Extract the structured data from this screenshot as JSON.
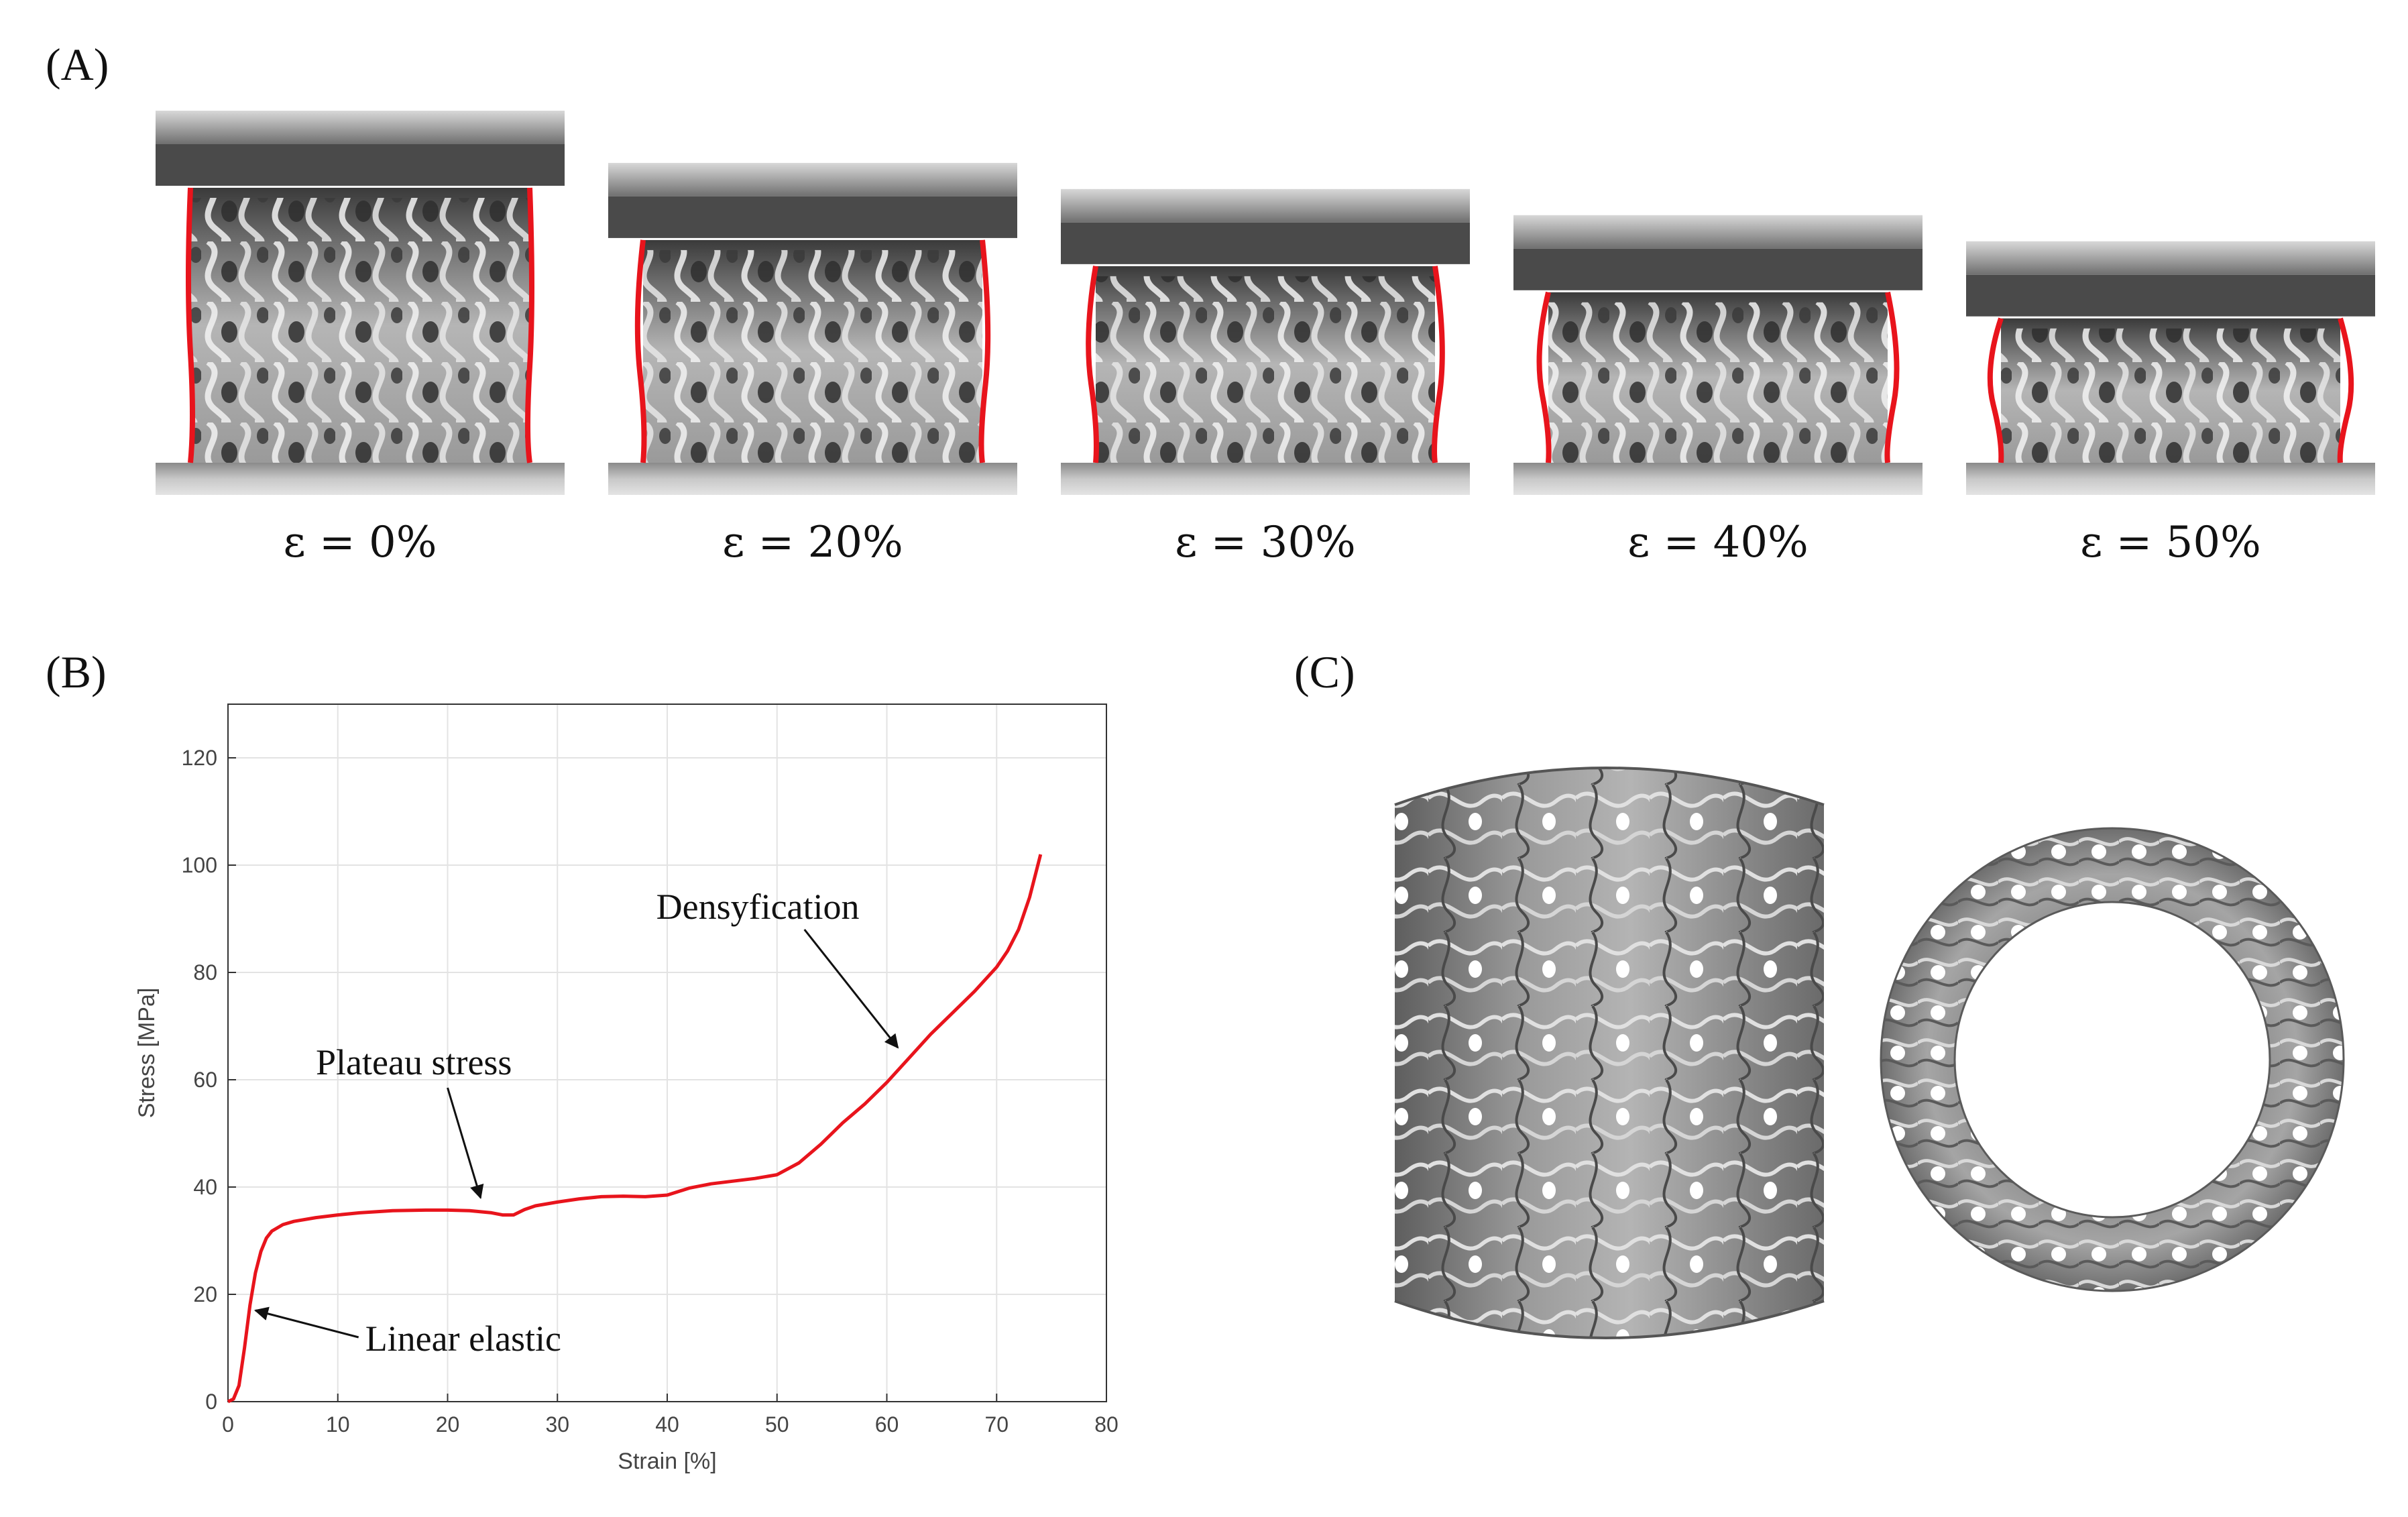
{
  "panels": {
    "a": "(A)",
    "b": "(B)",
    "c": "(C)"
  },
  "compression": {
    "frames": [
      {
        "label": "ε = 0%",
        "strain": 0
      },
      {
        "label": "ε = 20%",
        "strain": 20
      },
      {
        "label": "ε = 30%",
        "strain": 30
      },
      {
        "label": "ε = 40%",
        "strain": 40
      },
      {
        "label": "ε = 50%",
        "strain": 50
      }
    ],
    "outline_color": "#e8141c"
  },
  "chart_data": {
    "type": "line",
    "title": "",
    "xlabel": "Strain [%]",
    "ylabel": "Stress [MPa]",
    "xlim": [
      0,
      80
    ],
    "ylim": [
      0,
      130
    ],
    "xticks": [
      0,
      10,
      20,
      30,
      40,
      50,
      60,
      70,
      80
    ],
    "yticks": [
      0,
      20,
      40,
      60,
      80,
      100,
      120
    ],
    "grid": true,
    "series": [
      {
        "color": "#e8141c",
        "x": [
          0,
          0.5,
          1,
          1.5,
          2,
          2.5,
          3,
          3.5,
          4,
          5,
          6,
          8,
          10,
          12,
          15,
          18,
          20,
          22,
          24,
          25,
          26,
          27,
          28,
          30,
          32,
          34,
          36,
          38,
          40,
          42,
          44,
          46,
          48,
          50,
          52,
          54,
          56,
          58,
          60,
          62,
          64,
          66,
          68,
          70,
          71,
          72,
          73,
          74
        ],
        "y": [
          0,
          0.5,
          3,
          10,
          18,
          24,
          28,
          30.5,
          31.8,
          33,
          33.6,
          34.3,
          34.8,
          35.2,
          35.6,
          35.7,
          35.7,
          35.6,
          35.2,
          34.8,
          34.8,
          35.8,
          36.5,
          37.2,
          37.8,
          38.2,
          38.3,
          38.2,
          38.5,
          39.8,
          40.6,
          41.1,
          41.6,
          42.3,
          44.5,
          48,
          52,
          55.5,
          59.5,
          64,
          68.5,
          72.5,
          76.5,
          81,
          84,
          88,
          94,
          102
        ]
      }
    ],
    "annotations": [
      {
        "text": "Densyfication",
        "x": 61,
        "y": 66
      },
      {
        "text": "Plateau stress",
        "x": 23,
        "y": 38
      },
      {
        "text": "Linear elastic",
        "x": 2.5,
        "y": 17
      }
    ]
  },
  "models": {
    "cylinder_view": "gyroid-cylinder-side",
    "ring_view": "gyroid-ring-top"
  }
}
